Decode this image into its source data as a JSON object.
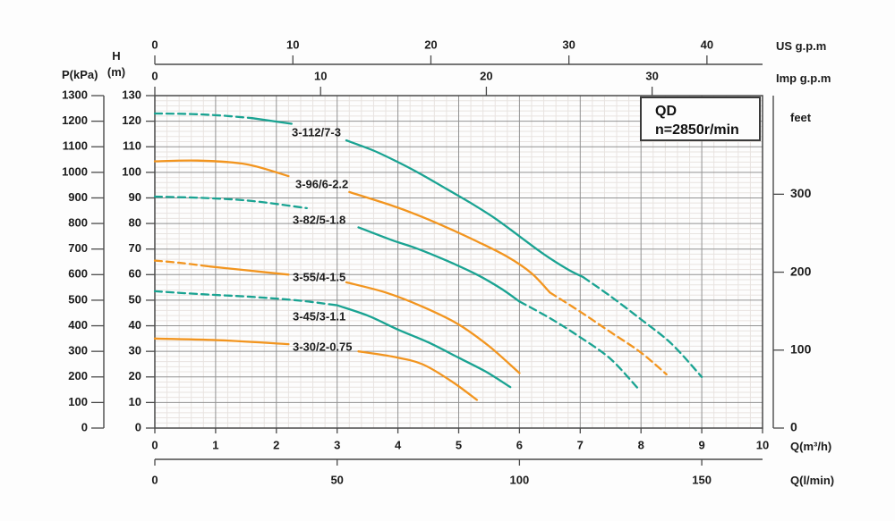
{
  "header": {
    "box_title": "QD",
    "box_subtitle": "n=2850r/min"
  },
  "axis_titles": {
    "p": "P(kPa)",
    "h_line1": "H",
    "h_line2": "(m)",
    "us": "US g.p.m",
    "imp": "Imp g.p.m",
    "feet": "feet",
    "q_m3h": "Q(m³/h)",
    "q_lmin": "Q(l/min)"
  },
  "colors": {
    "teal": "#1aa392",
    "orange": "#f2951f",
    "major_grid": "#929292",
    "minor_grid": "#e8e3e0",
    "axis": "#4a4a4a",
    "text": "#1c1c1c",
    "bg": "#fdfdfd"
  },
  "chart_data": {
    "type": "line",
    "title": "QD n=2850r/min pump performance curves",
    "xlabel": "Q(m³/h)",
    "ylabel": "H(m)",
    "xlim": [
      0,
      10
    ],
    "ylim": [
      0,
      130
    ],
    "grid": {
      "major_x_step": 1,
      "major_y_step": 10,
      "minor_x_step": 0.2,
      "minor_y_step": 2,
      "minor_on": true
    },
    "axes_ticks": {
      "h_m": [
        130,
        120,
        110,
        100,
        90,
        80,
        70,
        60,
        50,
        40,
        30,
        20,
        10,
        0
      ],
      "p_kpa": [
        1300,
        1200,
        1100,
        1000,
        900,
        800,
        700,
        600,
        500,
        400,
        300,
        200,
        100,
        0
      ],
      "us_gpm": [
        0,
        10,
        20,
        30,
        40
      ],
      "imp_gpm": [
        0,
        10,
        20,
        30
      ],
      "feet": [
        300,
        200,
        100,
        0
      ],
      "q_m3h": [
        0,
        1,
        2,
        3,
        4,
        5,
        6,
        7,
        8,
        9,
        10
      ],
      "q_lmin": [
        0,
        50,
        100,
        150
      ]
    },
    "series": [
      {
        "name": "3-112/7-3",
        "color": "teal",
        "segments": [
          {
            "style": "dashed",
            "points": [
              [
                0,
                123
              ],
              [
                0.6,
                122.8
              ],
              [
                1.1,
                122.2
              ],
              [
                1.6,
                121.2
              ]
            ]
          },
          {
            "style": "solid",
            "points": [
              [
                1.6,
                121.2
              ],
              [
                2.25,
                119
              ]
            ]
          },
          {
            "style": "solid",
            "points": [
              [
                3.15,
                112.5
              ],
              [
                3.6,
                108.5
              ],
              [
                4.0,
                104
              ],
              [
                4.4,
                99
              ],
              [
                4.8,
                93.5
              ],
              [
                5.2,
                88
              ],
              [
                5.6,
                82
              ],
              [
                6.0,
                75
              ],
              [
                6.4,
                68
              ],
              [
                6.8,
                62
              ],
              [
                7.05,
                59
              ]
            ]
          },
          {
            "style": "dashed",
            "points": [
              [
                7.05,
                59
              ],
              [
                7.5,
                51.5
              ],
              [
                8.0,
                42.5
              ],
              [
                8.5,
                33
              ],
              [
                9.0,
                20
              ]
            ]
          }
        ]
      },
      {
        "name": "3-96/6-2.2",
        "color": "orange",
        "segments": [
          {
            "style": "solid",
            "points": [
              [
                0,
                104.3
              ],
              [
                0.7,
                104.6
              ],
              [
                1.5,
                103.2
              ],
              [
                2.2,
                98.5
              ]
            ]
          },
          {
            "style": "solid",
            "points": [
              [
                3.2,
                92.3
              ],
              [
                3.9,
                87
              ],
              [
                4.3,
                83.5
              ],
              [
                4.8,
                78.5
              ],
              [
                5.3,
                73
              ],
              [
                5.8,
                67
              ],
              [
                6.2,
                60.5
              ],
              [
                6.5,
                53
              ]
            ]
          },
          {
            "style": "dashed",
            "points": [
              [
                6.5,
                53
              ],
              [
                7.0,
                45.5
              ],
              [
                7.5,
                37.5
              ],
              [
                8.0,
                29.5
              ],
              [
                8.42,
                21
              ]
            ]
          }
        ]
      },
      {
        "name": "3-82/5-1.8",
        "color": "teal",
        "segments": [
          {
            "style": "dashed",
            "points": [
              [
                0,
                90.5
              ],
              [
                0.8,
                90
              ],
              [
                1.6,
                88.8
              ],
              [
                2.5,
                86
              ]
            ]
          },
          {
            "style": "solid",
            "points": [
              [
                3.35,
                78.5
              ],
              [
                3.9,
                73.5
              ],
              [
                4.3,
                70.3
              ],
              [
                4.8,
                65.5
              ],
              [
                5.3,
                60
              ],
              [
                5.7,
                54.5
              ],
              [
                6.0,
                49.5
              ]
            ]
          },
          {
            "style": "dashed",
            "points": [
              [
                6.0,
                49.5
              ],
              [
                6.5,
                43
              ],
              [
                7.0,
                35.5
              ],
              [
                7.5,
                27
              ],
              [
                7.95,
                15.5
              ]
            ]
          }
        ]
      },
      {
        "name": "3-55/4-1.5",
        "color": "orange",
        "segments": [
          {
            "style": "dashed",
            "points": [
              [
                0,
                65.5
              ],
              [
                0.45,
                64.5
              ],
              [
                0.9,
                63.2
              ]
            ]
          },
          {
            "style": "solid",
            "points": [
              [
                0.9,
                63.2
              ],
              [
                1.5,
                61.7
              ],
              [
                2.2,
                60
              ]
            ]
          },
          {
            "style": "solid",
            "points": [
              [
                3.15,
                57
              ],
              [
                3.8,
                53
              ],
              [
                4.4,
                47.5
              ],
              [
                5.0,
                40.5
              ],
              [
                5.5,
                32
              ],
              [
                6.0,
                21.5
              ]
            ]
          }
        ]
      },
      {
        "name": "3-45/3-1.1",
        "color": "teal",
        "segments": [
          {
            "style": "dashed",
            "points": [
              [
                0,
                53.5
              ],
              [
                0.8,
                52.3
              ],
              [
                1.6,
                51.3
              ],
              [
                2.4,
                49.8
              ],
              [
                3.0,
                48
              ]
            ]
          },
          {
            "style": "solid",
            "points": [
              [
                3.0,
                48
              ],
              [
                3.5,
                44
              ],
              [
                4.0,
                38.5
              ],
              [
                4.5,
                33.5
              ],
              [
                5.0,
                27.5
              ],
              [
                5.45,
                22
              ],
              [
                5.85,
                16
              ]
            ]
          }
        ]
      },
      {
        "name": "3-30/2-0.75",
        "color": "orange",
        "segments": [
          {
            "style": "solid",
            "points": [
              [
                0,
                35
              ],
              [
                1.1,
                34.3
              ],
              [
                2.2,
                32.8
              ]
            ]
          },
          {
            "style": "solid",
            "points": [
              [
                3.35,
                30
              ],
              [
                3.9,
                28
              ],
              [
                4.4,
                25
              ],
              [
                4.9,
                18
              ],
              [
                5.3,
                11
              ]
            ]
          }
        ]
      }
    ]
  }
}
